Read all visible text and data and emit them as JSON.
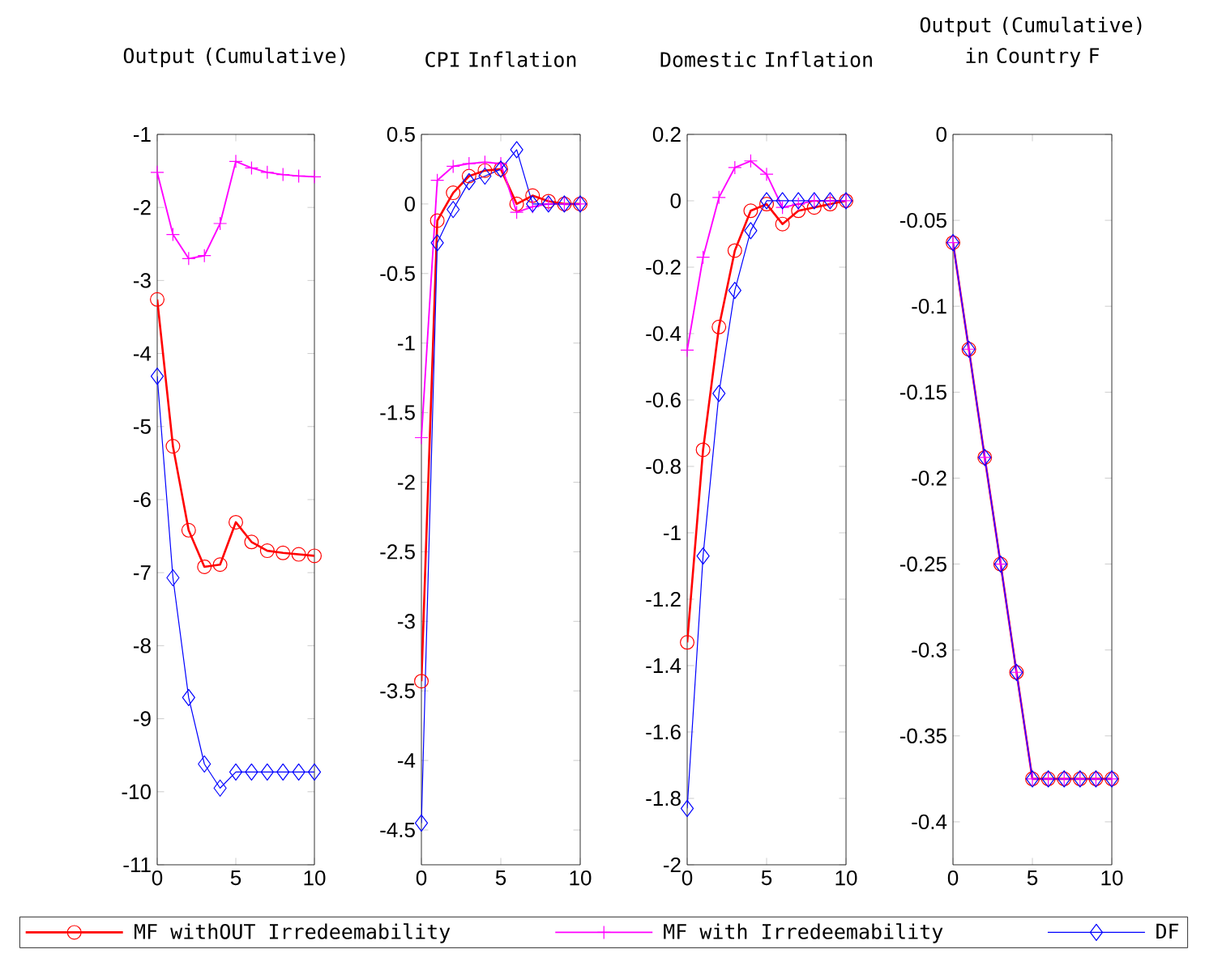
{
  "chart_data": [
    {
      "type": "line",
      "title": "Output (Cumulative)",
      "x": [
        0,
        1,
        2,
        3,
        4,
        5,
        6,
        7,
        8,
        9,
        10
      ],
      "xlim": [
        0,
        10
      ],
      "xticks": [
        0,
        5,
        10
      ],
      "ylim": [
        -11,
        -1
      ],
      "yticks": [
        -11,
        -10,
        -9,
        -8,
        -7,
        -6,
        -5,
        -4,
        -3,
        -2,
        -1
      ],
      "legend": "bottom",
      "series": [
        {
          "name": "MF withOUT Irredeemability",
          "color": "#ff0000",
          "marker": "circle",
          "values": [
            -3.26,
            -5.27,
            -6.42,
            -6.92,
            -6.89,
            -6.31,
            -6.58,
            -6.7,
            -6.73,
            -6.75,
            -6.77
          ]
        },
        {
          "name": "MF with Irredeemability",
          "color": "#ff00ff",
          "marker": "cross",
          "values": [
            -1.52,
            -2.37,
            -2.7,
            -2.66,
            -2.22,
            -1.37,
            -1.46,
            -1.52,
            -1.55,
            -1.57,
            -1.58
          ]
        },
        {
          "name": "DF",
          "color": "#0000ff",
          "marker": "diamond",
          "values": [
            -4.31,
            -7.07,
            -8.71,
            -9.62,
            -9.95,
            -9.73,
            -9.73,
            -9.73,
            -9.73,
            -9.73,
            -9.73
          ]
        }
      ]
    },
    {
      "type": "line",
      "title": "CPI Inflation",
      "x": [
        0,
        1,
        2,
        3,
        4,
        5,
        6,
        7,
        8,
        9,
        10
      ],
      "xlim": [
        0,
        10
      ],
      "xticks": [
        0,
        5,
        10
      ],
      "ylim": [
        -4.75,
        0.5
      ],
      "yticks": [
        -4.5,
        -4,
        -3.5,
        -3,
        -2.5,
        -2,
        -1.5,
        -1,
        -0.5,
        0,
        0.5
      ],
      "series": [
        {
          "color": "#ff0000",
          "marker": "circle",
          "values": [
            -3.43,
            -0.12,
            0.08,
            0.2,
            0.24,
            0.25,
            0,
            0.06,
            0.02,
            0,
            0
          ]
        },
        {
          "color": "#ff00ff",
          "marker": "cross",
          "values": [
            -1.68,
            0.17,
            0.27,
            0.29,
            0.3,
            0.29,
            -0.06,
            -0.02,
            0,
            0,
            0
          ]
        },
        {
          "color": "#0000ff",
          "marker": "diamond",
          "values": [
            -4.45,
            -0.28,
            -0.04,
            0.16,
            0.2,
            0.25,
            0.39,
            0,
            0,
            0,
            0
          ]
        }
      ]
    },
    {
      "type": "line",
      "title": "Domestic Inflation",
      "x": [
        0,
        1,
        2,
        3,
        4,
        5,
        6,
        7,
        8,
        9,
        10
      ],
      "xlim": [
        0,
        10
      ],
      "xticks": [
        0,
        5,
        10
      ],
      "ylim": [
        -2,
        0.2
      ],
      "yticks": [
        -2,
        -1.8,
        -1.6,
        -1.4,
        -1.2,
        -1,
        -0.8,
        -0.6,
        -0.4,
        -0.2,
        0,
        0.2
      ],
      "series": [
        {
          "color": "#ff0000",
          "marker": "circle",
          "values": [
            -1.33,
            -0.75,
            -0.38,
            -0.15,
            -0.03,
            -0.01,
            -0.07,
            -0.03,
            -0.02,
            -0.01,
            0
          ]
        },
        {
          "color": "#ff00ff",
          "marker": "cross",
          "values": [
            -0.45,
            -0.17,
            0.01,
            0.1,
            0.12,
            0.08,
            -0.02,
            -0.01,
            0,
            0,
            0
          ]
        },
        {
          "color": "#0000ff",
          "marker": "diamond",
          "values": [
            -1.83,
            -1.07,
            -0.58,
            -0.27,
            -0.09,
            0,
            0,
            0,
            0,
            0,
            0
          ]
        }
      ]
    },
    {
      "type": "line",
      "title": "Output (Cumulative) in Country F",
      "x": [
        0,
        1,
        2,
        3,
        4,
        5,
        6,
        7,
        8,
        9,
        10
      ],
      "xlim": [
        0,
        10
      ],
      "xticks": [
        0,
        5,
        10
      ],
      "ylim": [
        -0.425,
        0
      ],
      "yticks": [
        -0.4,
        -0.35,
        -0.3,
        -0.25,
        -0.2,
        -0.15,
        -0.1,
        -0.05,
        0
      ],
      "series": [
        {
          "color": "#ff0000",
          "marker": "circle",
          "values": [
            -0.063,
            -0.125,
            -0.188,
            -0.25,
            -0.313,
            -0.375,
            -0.375,
            -0.375,
            -0.375,
            -0.375,
            -0.375
          ]
        },
        {
          "color": "#ff00ff",
          "marker": "cross",
          "values": [
            -0.063,
            -0.125,
            -0.188,
            -0.25,
            -0.313,
            -0.375,
            -0.375,
            -0.375,
            -0.375,
            -0.375,
            -0.375
          ]
        },
        {
          "color": "#0000ff",
          "marker": "diamond",
          "values": [
            -0.063,
            -0.125,
            -0.188,
            -0.25,
            -0.313,
            -0.375,
            -0.375,
            -0.375,
            -0.375,
            -0.375,
            -0.375
          ]
        }
      ]
    }
  ]
}
